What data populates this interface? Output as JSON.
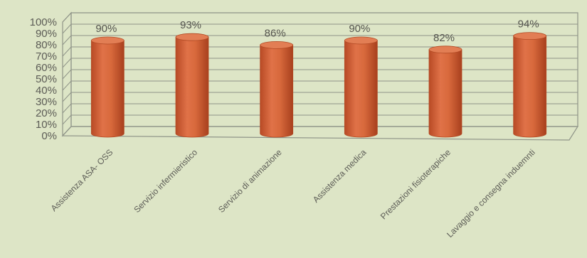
{
  "chart_data": {
    "type": "bar",
    "style": "3d-cylinder",
    "categories": [
      "Assistenza ASA- OSS",
      "Servizio infermieristico",
      "Servizio di animazione",
      "Assistenza medica",
      "Prestazioni fisioterapiche",
      "Lavaggio e consegna induemnti"
    ],
    "values": [
      90,
      93,
      86,
      90,
      82,
      94
    ],
    "value_labels": [
      "90%",
      "93%",
      "86%",
      "90%",
      "82%",
      "94%"
    ],
    "y_ticks": [
      "0%",
      "10%",
      "20%",
      "30%",
      "40%",
      "50%",
      "60%",
      "70%",
      "80%",
      "90%",
      "100%"
    ],
    "ylim": [
      0,
      100
    ],
    "title": "",
    "xlabel": "",
    "ylabel": "",
    "grid": true,
    "legend": "none",
    "colors": {
      "bar_body": "#d8693c",
      "bar_edge": "#b24a24",
      "bar_top": "#e27e54",
      "background": "#dde5c6",
      "grid": "#8f9488"
    }
  }
}
